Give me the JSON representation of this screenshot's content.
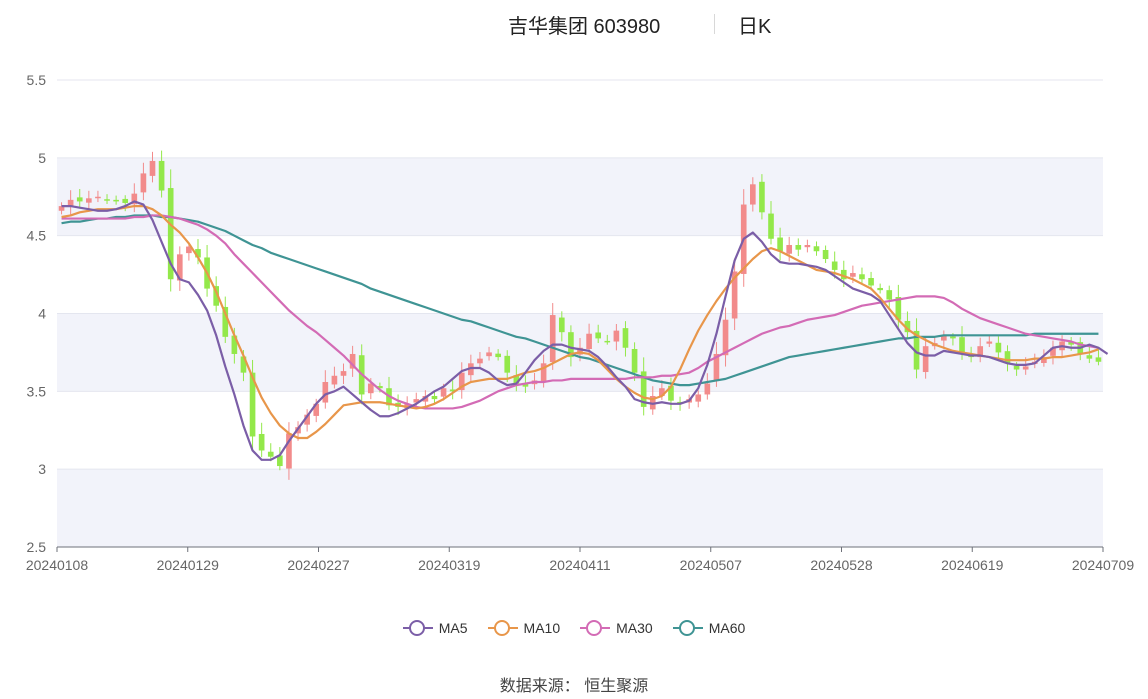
{
  "header": {
    "title": "吉华集团 603980",
    "period": "日K"
  },
  "source": "数据来源： 恒生聚源",
  "colors": {
    "up": "#f28b8b",
    "down": "#93e84a",
    "ma5": "#7b5ea7",
    "ma10": "#e8964a",
    "ma30": "#d36bb5",
    "ma60": "#3f9494",
    "band": "#f2f3fa",
    "grid": "#e4e6ef"
  },
  "chart_data": {
    "type": "candlestick",
    "ylim": [
      2.5,
      5.5
    ],
    "yticks": [
      "2.5",
      "3",
      "3.5",
      "4",
      "4.5",
      "5",
      "5.5"
    ],
    "xticks": [
      "20240108",
      "20240129",
      "20240227",
      "20240319",
      "20240411",
      "20240507",
      "20240528",
      "20240619",
      "20240709"
    ],
    "legend": [
      "MA5",
      "MA10",
      "MA30",
      "MA60"
    ],
    "closes": [
      4.69,
      4.73,
      4.72,
      4.74,
      4.75,
      4.73,
      4.72,
      4.71,
      4.77,
      4.9,
      4.98,
      4.79,
      4.22,
      4.38,
      4.43,
      4.36,
      4.16,
      4.05,
      3.85,
      3.74,
      3.62,
      3.21,
      3.12,
      3.08,
      3.02,
      3.23,
      3.27,
      3.35,
      3.42,
      3.56,
      3.6,
      3.63,
      3.74,
      3.48,
      3.55,
      3.52,
      3.41,
      3.4,
      3.42,
      3.45,
      3.47,
      3.45,
      3.52,
      3.5,
      3.62,
      3.68,
      3.71,
      3.75,
      3.72,
      3.62,
      3.55,
      3.53,
      3.57,
      3.68,
      3.99,
      3.88,
      3.72,
      3.78,
      3.87,
      3.84,
      3.82,
      3.89,
      3.78,
      3.62,
      3.4,
      3.47,
      3.52,
      3.44,
      3.42,
      3.45,
      3.48,
      3.55,
      3.74,
      3.96,
      4.27,
      4.7,
      4.83,
      4.65,
      4.48,
      4.4,
      4.44,
      4.41,
      4.44,
      4.4,
      4.35,
      4.28,
      4.22,
      4.26,
      4.22,
      4.18,
      4.15,
      4.09,
      3.96,
      3.88,
      3.64,
      3.79,
      3.81,
      3.86,
      3.84,
      3.75,
      3.72,
      3.79,
      3.82,
      3.75,
      3.68,
      3.64,
      3.66,
      3.69,
      3.72,
      3.78,
      3.82,
      3.8,
      3.74,
      3.71,
      3.69
    ],
    "ma5": [
      4.69,
      4.69,
      4.68,
      4.67,
      4.66,
      4.66,
      4.67,
      4.69,
      4.72,
      4.7,
      4.6,
      4.46,
      4.32,
      4.22,
      4.2,
      4.12,
      4.02,
      3.86,
      3.66,
      3.48,
      3.28,
      3.12,
      3.06,
      3.06,
      3.09,
      3.18,
      3.26,
      3.34,
      3.42,
      3.48,
      3.5,
      3.53,
      3.48,
      3.43,
      3.38,
      3.34,
      3.34,
      3.36,
      3.39,
      3.42,
      3.46,
      3.5,
      3.53,
      3.58,
      3.63,
      3.65,
      3.65,
      3.62,
      3.57,
      3.54,
      3.55,
      3.62,
      3.7,
      3.76,
      3.8,
      3.8,
      3.78,
      3.77,
      3.76,
      3.72,
      3.66,
      3.59,
      3.53,
      3.45,
      3.43,
      3.42,
      3.43,
      3.42,
      3.42,
      3.44,
      3.52,
      3.67,
      3.87,
      4.11,
      4.34,
      4.48,
      4.52,
      4.46,
      4.38,
      4.33,
      4.32,
      4.32,
      4.31,
      4.3,
      4.28,
      4.24,
      4.2,
      4.16,
      4.14,
      4.12,
      4.08,
      3.99,
      3.9,
      3.81,
      3.75,
      3.73,
      3.73,
      3.76,
      3.75,
      3.74,
      3.73,
      3.73,
      3.72,
      3.7,
      3.68,
      3.67,
      3.67,
      3.68,
      3.73,
      3.78,
      3.79,
      3.78,
      3.78,
      3.8,
      3.78,
      3.74
    ],
    "ma10": [
      4.62,
      4.63,
      4.65,
      4.66,
      4.67,
      4.67,
      4.67,
      4.68,
      4.69,
      4.69,
      4.67,
      4.63,
      4.57,
      4.52,
      4.45,
      4.36,
      4.26,
      4.14,
      4.0,
      3.86,
      3.73,
      3.59,
      3.46,
      3.36,
      3.28,
      3.23,
      3.2,
      3.2,
      3.24,
      3.29,
      3.35,
      3.41,
      3.42,
      3.43,
      3.43,
      3.43,
      3.42,
      3.41,
      3.4,
      3.39,
      3.4,
      3.42,
      3.45,
      3.49,
      3.53,
      3.56,
      3.57,
      3.58,
      3.58,
      3.58,
      3.6,
      3.62,
      3.63,
      3.65,
      3.68,
      3.71,
      3.74,
      3.75,
      3.74,
      3.7,
      3.64,
      3.58,
      3.53,
      3.49,
      3.46,
      3.45,
      3.47,
      3.53,
      3.64,
      3.77,
      3.89,
      3.99,
      4.08,
      4.16,
      4.23,
      4.29,
      4.35,
      4.4,
      4.42,
      4.4,
      4.37,
      4.34,
      4.31,
      4.28,
      4.27,
      4.26,
      4.24,
      4.22,
      4.19,
      4.16,
      4.1,
      4.03,
      3.96,
      3.9,
      3.86,
      3.83,
      3.8,
      3.78,
      3.76,
      3.75,
      3.74,
      3.73,
      3.72,
      3.71,
      3.7,
      3.7,
      3.7,
      3.71,
      3.71,
      3.72,
      3.72,
      3.73,
      3.74,
      3.75,
      3.77
    ],
    "ma30": [
      4.61,
      4.61,
      4.61,
      4.61,
      4.61,
      4.61,
      4.61,
      4.61,
      4.62,
      4.62,
      4.63,
      4.63,
      4.62,
      4.61,
      4.59,
      4.57,
      4.54,
      4.5,
      4.45,
      4.38,
      4.32,
      4.26,
      4.2,
      4.14,
      4.08,
      4.02,
      3.97,
      3.92,
      3.88,
      3.83,
      3.78,
      3.73,
      3.67,
      3.61,
      3.56,
      3.51,
      3.47,
      3.44,
      3.42,
      3.4,
      3.39,
      3.39,
      3.39,
      3.39,
      3.4,
      3.42,
      3.44,
      3.47,
      3.5,
      3.52,
      3.54,
      3.55,
      3.56,
      3.56,
      3.57,
      3.57,
      3.58,
      3.58,
      3.58,
      3.58,
      3.58,
      3.58,
      3.58,
      3.59,
      3.59,
      3.59,
      3.6,
      3.6,
      3.61,
      3.62,
      3.65,
      3.69,
      3.72,
      3.75,
      3.78,
      3.81,
      3.84,
      3.87,
      3.89,
      3.91,
      3.92,
      3.94,
      3.96,
      3.97,
      3.98,
      3.99,
      4.01,
      4.03,
      4.05,
      4.06,
      4.07,
      4.08,
      4.09,
      4.1,
      4.11,
      4.11,
      4.11,
      4.1,
      4.07,
      4.03,
      4.0,
      3.97,
      3.95,
      3.93,
      3.91,
      3.89,
      3.87,
      3.86,
      3.85,
      3.84,
      3.83,
      3.82,
      3.8,
      3.79,
      3.78
    ],
    "ma60": [
      4.58,
      4.59,
      4.59,
      4.6,
      4.61,
      4.61,
      4.62,
      4.62,
      4.63,
      4.63,
      4.63,
      4.62,
      4.62,
      4.61,
      4.6,
      4.59,
      4.57,
      4.55,
      4.53,
      4.5,
      4.47,
      4.44,
      4.42,
      4.39,
      4.37,
      4.35,
      4.33,
      4.31,
      4.29,
      4.27,
      4.25,
      4.23,
      4.21,
      4.19,
      4.16,
      4.14,
      4.12,
      4.1,
      4.08,
      4.06,
      4.04,
      4.02,
      4.0,
      3.98,
      3.96,
      3.95,
      3.93,
      3.91,
      3.89,
      3.87,
      3.85,
      3.84,
      3.82,
      3.8,
      3.78,
      3.76,
      3.74,
      3.72,
      3.71,
      3.69,
      3.67,
      3.65,
      3.63,
      3.61,
      3.59,
      3.57,
      3.56,
      3.55,
      3.54,
      3.54,
      3.55,
      3.56,
      3.57,
      3.58,
      3.6,
      3.62,
      3.64,
      3.66,
      3.68,
      3.7,
      3.72,
      3.73,
      3.74,
      3.75,
      3.76,
      3.77,
      3.78,
      3.79,
      3.8,
      3.81,
      3.82,
      3.83,
      3.84,
      3.84,
      3.85,
      3.85,
      3.85,
      3.86,
      3.86,
      3.86,
      3.86,
      3.86,
      3.86,
      3.86,
      3.86,
      3.86,
      3.86,
      3.87,
      3.87,
      3.87,
      3.87,
      3.87,
      3.87,
      3.87,
      3.87
    ]
  }
}
